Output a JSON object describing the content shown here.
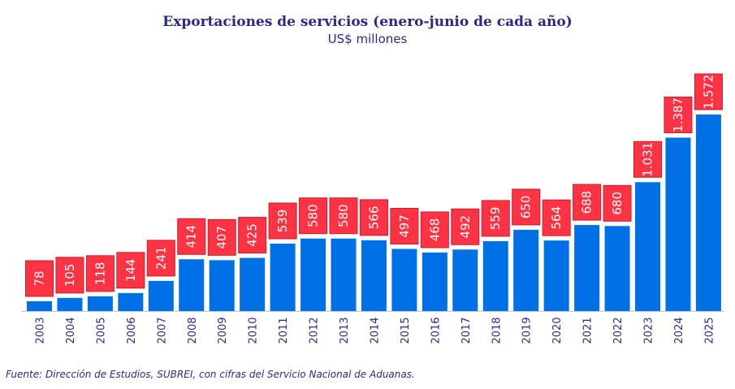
{
  "colors": {
    "bar": "#0070e6",
    "label_box": "#ff3344",
    "label_border": "#c81e2c",
    "label_text": "#ffffff",
    "text": "#2a2a86",
    "axis": "#c8c8c8"
  },
  "chart_data": {
    "type": "bar",
    "title": "Exportaciones de servicios (enero-junio de cada año)",
    "subtitle": "US$ millones",
    "xlabel": "",
    "ylabel": "",
    "ylim": [
      0,
      1572
    ],
    "grid": false,
    "legend": "none",
    "categories": [
      "2003",
      "2004",
      "2005",
      "2006",
      "2007",
      "2008",
      "2009",
      "2010",
      "2011",
      "2012",
      "2013",
      "2014",
      "2015",
      "2016",
      "2017",
      "2018",
      "2019",
      "2020",
      "2021",
      "2022",
      "2023",
      "2024",
      "2025"
    ],
    "values": [
      78,
      105,
      118,
      144,
      241,
      414,
      407,
      425,
      539,
      580,
      580,
      566,
      497,
      468,
      492,
      559,
      650,
      564,
      688,
      680,
      1031,
      1387,
      1572
    ],
    "data_labels": [
      "78",
      "105",
      "118",
      "144",
      "241",
      "414",
      "407",
      "425",
      "539",
      "580",
      "580",
      "566",
      "497",
      "468",
      "492",
      "559",
      "650",
      "564",
      "688",
      "680",
      "1.031",
      "1.387",
      "1.572"
    ]
  },
  "footer": {
    "source": "Fuente: Dirección de Estudios, SUBREI, con cifras del Servicio Nacional de Aduanas."
  }
}
